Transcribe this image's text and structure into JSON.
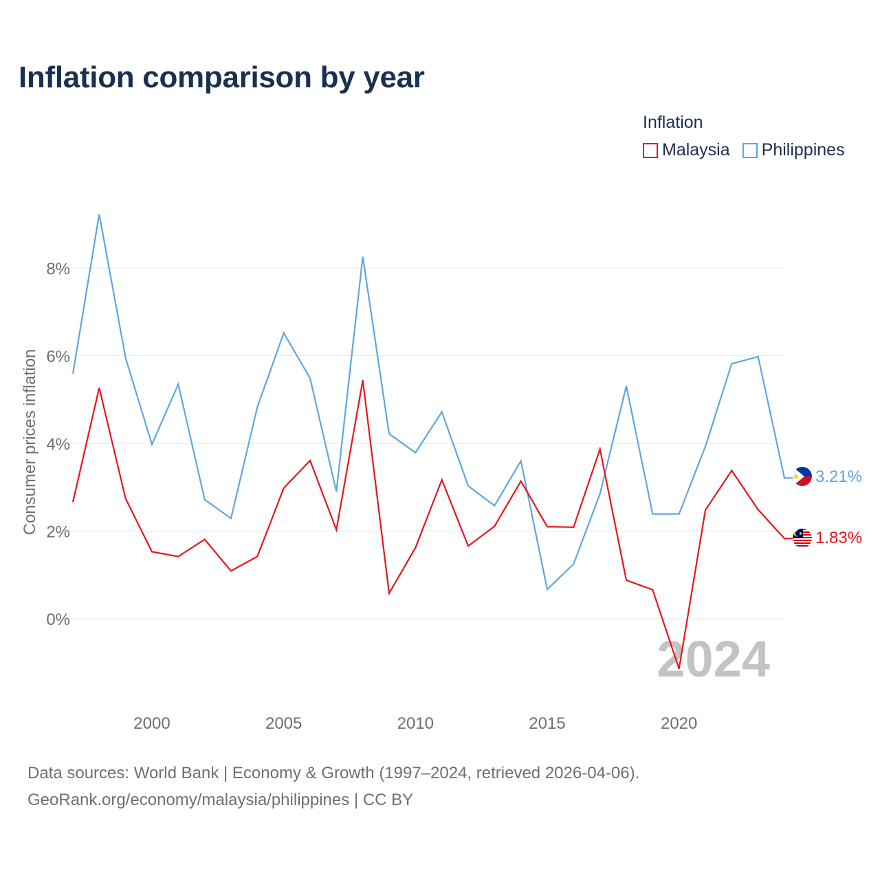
{
  "title": "Inflation comparison by year",
  "legend": {
    "title": "Inflation",
    "items": [
      {
        "label": "Malaysia",
        "color": "#e8141b"
      },
      {
        "label": "Philippines",
        "color": "#5fa5e3"
      }
    ]
  },
  "source": {
    "line1": "Data sources: World Bank | Economy & Growth (1997–2024, retrieved 2026-04-06).",
    "line2": "GeoRank.org/economy/malaysia/philippines | CC BY"
  },
  "chart_data": {
    "type": "line",
    "title": "Inflation comparison by year",
    "xlabel": "",
    "ylabel": "Consumer prices inflation",
    "x": [
      1997,
      1998,
      1999,
      2000,
      2001,
      2002,
      2003,
      2004,
      2005,
      2006,
      2007,
      2008,
      2009,
      2010,
      2011,
      2012,
      2013,
      2014,
      2015,
      2016,
      2017,
      2018,
      2019,
      2020,
      2021,
      2022,
      2023,
      2024
    ],
    "xlim": [
      1997,
      2024
    ],
    "ylim": [
      -1.75,
      9.5
    ],
    "x_ticks": [
      2000,
      2005,
      2010,
      2015,
      2020
    ],
    "x_tick_labels": [
      "2000",
      "2005",
      "2010",
      "2015",
      "2020"
    ],
    "y_ticks": [
      0,
      2,
      4,
      6,
      8
    ],
    "y_tick_labels": [
      "0%",
      "2%",
      "4%",
      "6%",
      "8%"
    ],
    "grid": true,
    "legend_position": "top-right",
    "year_watermark": "2024",
    "series": [
      {
        "name": "Malaysia",
        "color": "#e8141b",
        "flag": "malaysia-flag-icon",
        "end_label": "1.83%",
        "values": [
          2.66,
          5.27,
          2.74,
          1.53,
          1.42,
          1.81,
          1.09,
          1.42,
          2.98,
          3.61,
          2.03,
          5.44,
          0.58,
          1.62,
          3.17,
          1.66,
          2.11,
          3.14,
          2.1,
          2.09,
          3.87,
          0.88,
          0.66,
          -1.14,
          2.48,
          3.38,
          2.49,
          1.83
        ]
      },
      {
        "name": "Philippines",
        "color": "#5fa5e3",
        "flag": "philippines-flag-icon",
        "end_label": "3.21%",
        "values": [
          5.59,
          9.23,
          5.95,
          3.98,
          5.35,
          2.72,
          2.29,
          4.83,
          6.52,
          5.49,
          2.9,
          8.26,
          4.22,
          3.79,
          4.72,
          3.03,
          2.58,
          3.6,
          0.67,
          1.25,
          2.85,
          5.31,
          2.39,
          2.39,
          3.93,
          5.82,
          5.98,
          3.21
        ]
      }
    ]
  }
}
